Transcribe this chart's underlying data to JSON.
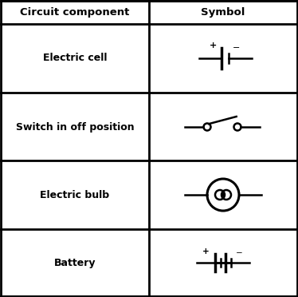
{
  "title_left": "Circuit component",
  "title_right": "Symbol",
  "rows": [
    "Electric cell",
    "Switch in off position",
    "Electric bulb",
    "Battery"
  ],
  "bg_color": "#ffffff",
  "border_color": "#000000",
  "text_color": "#000000",
  "header_fontsize": 9.5,
  "row_fontsize": 9,
  "fig_width": 3.74,
  "fig_height": 3.72,
  "dpi": 100
}
